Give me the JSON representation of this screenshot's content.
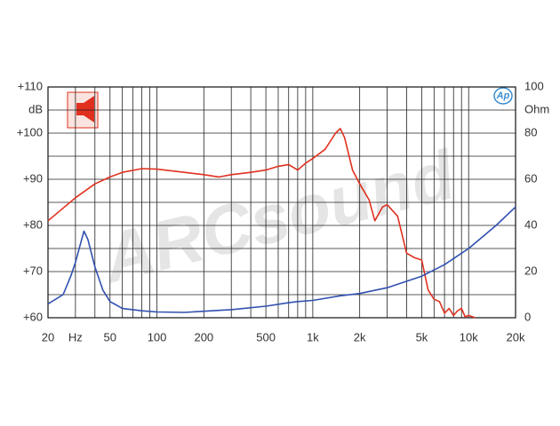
{
  "chart_data": {
    "type": "line",
    "y_label": "dB",
    "y2_label": "Ohm",
    "logo_text": "Ap",
    "watermark": "ARCsound",
    "xlog": true,
    "xlim": [
      20,
      20000
    ],
    "ylim": [
      60,
      110
    ],
    "y2lim": [
      0,
      100
    ],
    "xticks": [
      20,
      {
        "value": 30,
        "label": "Hz"
      },
      50,
      100,
      200,
      500,
      {
        "value": 1000,
        "label": "1k"
      },
      {
        "value": 2000,
        "label": "2k"
      },
      {
        "value": 5000,
        "label": "5k"
      },
      {
        "value": 10000,
        "label": "10k"
      },
      {
        "value": 20000,
        "label": "20k"
      }
    ],
    "yticks": [
      {
        "value": 60,
        "label": "+60"
      },
      {
        "value": 70,
        "label": "+70"
      },
      {
        "value": 80,
        "label": "+80"
      },
      {
        "value": 90,
        "label": "+90"
      },
      {
        "value": 100,
        "label": "+100"
      },
      {
        "value": 110,
        "label": "+110"
      }
    ],
    "y2ticks": [
      0,
      20,
      40,
      60,
      80,
      100
    ],
    "xgrid": [
      20,
      30,
      40,
      50,
      60,
      70,
      80,
      90,
      100,
      200,
      300,
      400,
      500,
      600,
      700,
      800,
      900,
      1000,
      2000,
      3000,
      4000,
      5000,
      6000,
      7000,
      8000,
      9000,
      10000,
      20000
    ],
    "ygrid": [
      60,
      65,
      70,
      75,
      80,
      85,
      90,
      95,
      100,
      105,
      110
    ],
    "series": [
      {
        "color": "#e0301e",
        "x": [
          20,
          30,
          40,
          50,
          60,
          80,
          100,
          150,
          200,
          250,
          300,
          400,
          500,
          600,
          700,
          800,
          900,
          1000,
          1200,
          1400,
          1500,
          1600,
          1800,
          2000,
          2300,
          2500,
          2800,
          3000,
          3500,
          4000,
          4500,
          5000,
          5500,
          6000,
          6500,
          7000,
          7500,
          8000,
          8500,
          9000,
          9500,
          10000,
          11000
        ],
        "values": [
          81,
          86,
          89,
          90.5,
          91.5,
          92.3,
          92.2,
          91.5,
          91,
          90.5,
          91,
          91.5,
          92,
          92.8,
          93.2,
          92,
          93.5,
          94.5,
          96.5,
          100,
          101,
          99,
          92,
          89,
          85.5,
          81,
          84,
          84.5,
          82,
          74,
          73,
          72.5,
          66,
          64,
          63.5,
          61,
          62,
          60.5,
          61.5,
          62,
          60.2,
          60.5,
          60
        ]
      },
      {
        "color": "#3050b0",
        "axis": "y2",
        "x": [
          20,
          25,
          28,
          30,
          32,
          34,
          36,
          40,
          45,
          50,
          60,
          80,
          100,
          150,
          200,
          300,
          500,
          700,
          800,
          1000,
          1500,
          2000,
          3000,
          5000,
          7000,
          10000,
          15000,
          20000
        ],
        "values": [
          6,
          10,
          18,
          24,
          31,
          37.5,
          34,
          22,
          12,
          7,
          4,
          3,
          2.5,
          2.3,
          2.8,
          3.5,
          5,
          6.5,
          7,
          7.5,
          9.5,
          10.5,
          13,
          18,
          23,
          30,
          40,
          48
        ]
      }
    ]
  }
}
